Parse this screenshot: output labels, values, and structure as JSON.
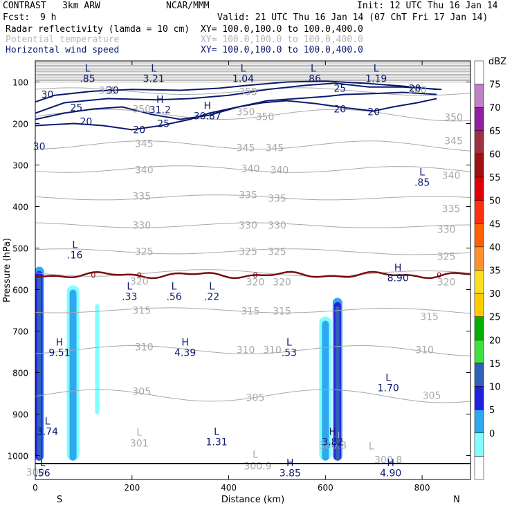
{
  "header": {
    "model": "CONTRAST   3km ARW",
    "org": "NCAR/MMM",
    "init": "Init: 12 UTC Thu 16 Jan 14",
    "fcst_label": "Fcst:",
    "fcst_value": "9 h",
    "valid": "Valid: 21 UTC Thu 16 Jan 14 (07 ChT Fri 17 Jan 14)",
    "fields": [
      {
        "name": "Radar reflectivity (lamda = 10 cm)",
        "xy": "XY= 100.0,100.0 to 100.0,400.0",
        "color": "#000000"
      },
      {
        "name": "Potential temperature",
        "xy": "XY= 100.0,100.0 to 100.0,400.0",
        "color": "#b4b4b4"
      },
      {
        "name": "Horizontal wind speed",
        "xy": "XY= 100.0,100.0 to 100.0,400.0",
        "color": "#0a1a6e"
      }
    ]
  },
  "colors": {
    "theta": "#a8a8a8",
    "wind": "#0a1a6e",
    "freezing": "#7a0a0a"
  },
  "chart_data": {
    "type": "cross-section",
    "xlabel": "Distance (km)",
    "ylabel": "Pressure (hPa)",
    "xlim": [
      0,
      900
    ],
    "ylim_pressure": [
      1050,
      70
    ],
    "x_ticks": [
      0,
      200,
      400,
      600,
      800
    ],
    "y_ticks": [
      100,
      200,
      300,
      400,
      500,
      600,
      700,
      800,
      900,
      1000
    ],
    "endpoint_left": "S",
    "endpoint_right": "N",
    "colorbar": {
      "unit": "dBZ",
      "levels": [
        75,
        70,
        65,
        60,
        55,
        50,
        45,
        40,
        35,
        30,
        25,
        20,
        15,
        10,
        5,
        0
      ],
      "colors": [
        "#ffffff",
        "#c080c8",
        "#9020a0",
        "#a03040",
        "#a01010",
        "#e00000",
        "#ff3010",
        "#ff6000",
        "#ff9030",
        "#ffdd20",
        "#ffcc00",
        "#00b000",
        "#40e040",
        "#3060b8",
        "#2020e0",
        "#30a8f0",
        "#80ffff",
        "#ffffff"
      ]
    },
    "theta_labels": [
      {
        "x": 150,
        "p": 120,
        "label": "355"
      },
      {
        "x": 440,
        "p": 123,
        "label": "355"
      },
      {
        "x": 790,
        "p": 118,
        "label": "360"
      },
      {
        "x": 220,
        "p": 165,
        "label": "350"
      },
      {
        "x": 435,
        "p": 172,
        "label": "350"
      },
      {
        "x": 475,
        "p": 183,
        "label": "350"
      },
      {
        "x": 865,
        "p": 185,
        "label": "350"
      },
      {
        "x": 225,
        "p": 248,
        "label": "345"
      },
      {
        "x": 435,
        "p": 258,
        "label": "345"
      },
      {
        "x": 495,
        "p": 258,
        "label": "345"
      },
      {
        "x": 865,
        "p": 242,
        "label": "345"
      },
      {
        "x": 225,
        "p": 312,
        "label": "340"
      },
      {
        "x": 445,
        "p": 308,
        "label": "340"
      },
      {
        "x": 505,
        "p": 312,
        "label": "340"
      },
      {
        "x": 860,
        "p": 325,
        "label": "340"
      },
      {
        "x": 220,
        "p": 375,
        "label": "335"
      },
      {
        "x": 440,
        "p": 372,
        "label": "335"
      },
      {
        "x": 500,
        "p": 380,
        "label": "335"
      },
      {
        "x": 860,
        "p": 405,
        "label": "335"
      },
      {
        "x": 220,
        "p": 445,
        "label": "330"
      },
      {
        "x": 440,
        "p": 445,
        "label": "330"
      },
      {
        "x": 500,
        "p": 445,
        "label": "330"
      },
      {
        "x": 850,
        "p": 455,
        "label": "330"
      },
      {
        "x": 225,
        "p": 508,
        "label": "325"
      },
      {
        "x": 440,
        "p": 508,
        "label": "325"
      },
      {
        "x": 500,
        "p": 508,
        "label": "325"
      },
      {
        "x": 850,
        "p": 520,
        "label": "325"
      },
      {
        "x": 215,
        "p": 580,
        "label": "320"
      },
      {
        "x": 455,
        "p": 582,
        "label": "320"
      },
      {
        "x": 510,
        "p": 582,
        "label": "320"
      },
      {
        "x": 850,
        "p": 582,
        "label": "320"
      },
      {
        "x": 220,
        "p": 650,
        "label": "315"
      },
      {
        "x": 445,
        "p": 652,
        "label": "315"
      },
      {
        "x": 510,
        "p": 652,
        "label": "315"
      },
      {
        "x": 815,
        "p": 665,
        "label": "315"
      },
      {
        "x": 225,
        "p": 738,
        "label": "310"
      },
      {
        "x": 435,
        "p": 745,
        "label": "310"
      },
      {
        "x": 490,
        "p": 745,
        "label": "310"
      },
      {
        "x": 805,
        "p": 745,
        "label": "310"
      },
      {
        "x": 220,
        "p": 845,
        "label": "305"
      },
      {
        "x": 455,
        "p": 860,
        "label": "305"
      },
      {
        "x": 820,
        "p": 855,
        "label": "305"
      },
      {
        "x": 215,
        "p": 970,
        "label": "301"
      },
      {
        "x": 460,
        "p": 1025,
        "label": "300.9"
      },
      {
        "x": 615,
        "p": 975,
        "label": "300.8"
      },
      {
        "x": 730,
        "p": 1010,
        "label": "300.8"
      },
      {
        "x": 0,
        "p": 1040,
        "label": "300"
      }
    ],
    "wind_labels": [
      {
        "x": 160,
        "p": 120,
        "label": "30"
      },
      {
        "x": 25,
        "p": 130,
        "label": "30"
      },
      {
        "x": 85,
        "p": 162,
        "label": "25"
      },
      {
        "x": 265,
        "p": 200,
        "label": "25"
      },
      {
        "x": 105,
        "p": 195,
        "label": "20"
      },
      {
        "x": 215,
        "p": 215,
        "label": "20"
      },
      {
        "x": 630,
        "p": 165,
        "label": "20"
      },
      {
        "x": 700,
        "p": 172,
        "label": "20"
      },
      {
        "x": 630,
        "p": 115,
        "label": "25"
      },
      {
        "x": 785,
        "p": 115,
        "label": "20"
      },
      {
        "x": 8,
        "p": 255,
        "label": "30"
      }
    ],
    "freezing_level": {
      "label": "0",
      "p": 565
    },
    "extrema_theta": [
      {
        "type": "L",
        "x": 215,
        "p": 952,
        "label": ""
      },
      {
        "type": "L",
        "x": 455,
        "p": 1005,
        "label": ""
      },
      {
        "type": "L",
        "x": 630,
        "p": 960,
        "label": ""
      },
      {
        "type": "L",
        "x": 695,
        "p": 985,
        "label": ""
      }
    ],
    "extrema_wind": [
      {
        "type": "L",
        "x": 108,
        "p": 75,
        "label": ".85"
      },
      {
        "type": "L",
        "x": 245,
        "p": 75,
        "label": "3.21"
      },
      {
        "type": "L",
        "x": 430,
        "p": 75,
        "label": "1.04"
      },
      {
        "type": "L",
        "x": 575,
        "p": 75,
        "label": ".86"
      },
      {
        "type": "L",
        "x": 705,
        "p": 75,
        "label": "1.19"
      },
      {
        "type": "H",
        "x": 258,
        "p": 150,
        "label": "31.2"
      },
      {
        "type": "H",
        "x": 356,
        "p": 165,
        "label": "30.87"
      },
      {
        "type": "L",
        "x": 800,
        "p": 325,
        "label": ".85"
      },
      {
        "type": "L",
        "x": 82,
        "p": 500,
        "label": ".16"
      },
      {
        "type": "H",
        "x": 750,
        "p": 555,
        "label": "8.90"
      },
      {
        "type": "L",
        "x": 195,
        "p": 600,
        "label": ".33"
      },
      {
        "type": "L",
        "x": 287,
        "p": 600,
        "label": ".56"
      },
      {
        "type": "L",
        "x": 365,
        "p": 600,
        "label": ".22"
      },
      {
        "type": "H",
        "x": 50,
        "p": 735,
        "label": "9.51"
      },
      {
        "type": "H",
        "x": 310,
        "p": 735,
        "label": "4.39"
      },
      {
        "type": "L",
        "x": 525,
        "p": 735,
        "label": ".53"
      },
      {
        "type": "L",
        "x": 730,
        "p": 820,
        "label": "1.70"
      },
      {
        "type": "L",
        "x": 25,
        "p": 925,
        "label": "3.74"
      },
      {
        "type": "L",
        "x": 375,
        "p": 950,
        "label": "1.31"
      },
      {
        "type": "H",
        "x": 615,
        "p": 950,
        "label": "3.82"
      },
      {
        "type": "L",
        "x": 15,
        "p": 1025,
        "label": ".56"
      },
      {
        "type": "H",
        "x": 527,
        "p": 1025,
        "label": "3.85"
      },
      {
        "type": "H",
        "x": 735,
        "p": 1025,
        "label": "4.90"
      }
    ],
    "reflectivity_cells": [
      {
        "x": 8,
        "p_top": 545,
        "p_bot": 1012,
        "max_dbz": 20
      },
      {
        "x": 78,
        "p_top": 590,
        "p_bot": 1012,
        "max_dbz": 10
      },
      {
        "x": 128,
        "p_top": 635,
        "p_bot": 900,
        "max_dbz": 5
      },
      {
        "x": 600,
        "p_top": 665,
        "p_bot": 1012,
        "max_dbz": 10
      },
      {
        "x": 625,
        "p_top": 620,
        "p_bot": 1012,
        "max_dbz": 20
      }
    ]
  }
}
